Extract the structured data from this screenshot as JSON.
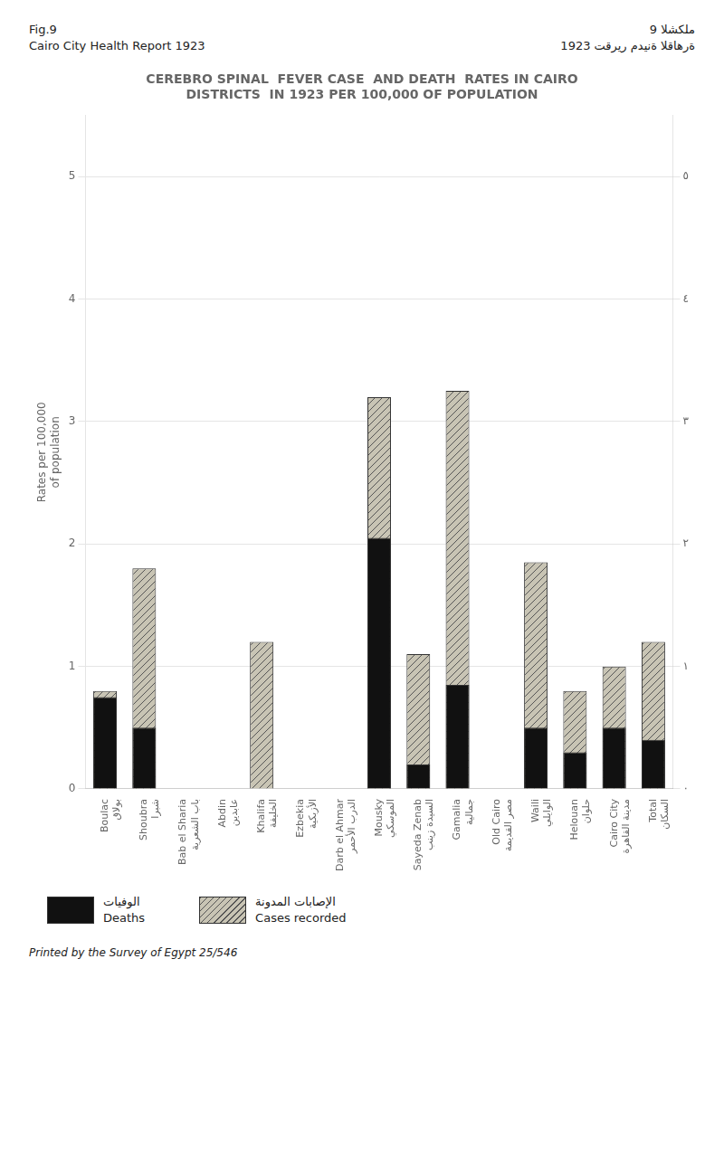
{
  "chart_data": {
    "type": "bar",
    "title": [
      "CEREBRO SPINAL  FEVER CASE  AND DEATH  RATES IN CAIRO",
      "DISTRICTS  IN 1923 PER 100,000 OF POPULATION"
    ],
    "ylabel": "Rates per 100,000\nof population",
    "categories": [
      [
        "Boulac",
        "بولاق"
      ],
      [
        "Shoubra",
        "شبرا"
      ],
      [
        "Bab el Sharia",
        "باب الشعرية"
      ],
      [
        "Abdin",
        "عابدين"
      ],
      [
        "Khalifa",
        "الخليفة"
      ],
      [
        "Ezbekia",
        "الأزبكية"
      ],
      [
        "Darb el Ahmar",
        "الدرب الأحمر"
      ],
      [
        "Mousky",
        "الموسكي"
      ],
      [
        "Sayeda Zenab",
        "السيدة زينب"
      ],
      [
        "Gamalia",
        "جمالية"
      ],
      [
        "Old Cairo",
        "مصر القديمة"
      ],
      [
        "Waili",
        "الوايلي"
      ],
      [
        "Helouan",
        "حلوان"
      ],
      [
        "Cairo City",
        "مدينة القاهرة"
      ],
      [
        "Total",
        "السكان"
      ]
    ],
    "series": [
      {
        "name": "Cases recorded",
        "color": "#c8c4b4",
        "values": [
          0.8,
          1.8,
          0,
          0,
          1.2,
          0,
          0,
          3.2,
          1.1,
          3.25,
          0,
          1.85,
          0.8,
          1.0,
          1.2
        ]
      },
      {
        "name": "Deaths",
        "color": "#111111",
        "values": [
          0.75,
          0.5,
          0,
          0,
          0,
          0,
          0,
          2.05,
          0.2,
          0.85,
          0,
          0.5,
          0.3,
          0.5,
          0.4
        ]
      }
    ],
    "ylim": [
      0,
      5.5
    ],
    "yticks": [
      0,
      1,
      2,
      3,
      4,
      5
    ],
    "y2lim": [
      0,
      5.5
    ],
    "y2ticks": [
      {
        "value": 0,
        "label": "٠"
      },
      {
        "value": 1,
        "label": "١"
      },
      {
        "value": 2,
        "label": "٢"
      },
      {
        "value": 3,
        "label": "٣"
      },
      {
        "value": 4,
        "label": "٤"
      },
      {
        "value": 5,
        "label": "٥"
      }
    ],
    "grid": true,
    "legend": "bottom",
    "annotations": [
      "Fig.9",
      "Cairo City Health Report 1923",
      "9 ملكشلا",
      "1923 ةرهاقلا ةنيدم ريرقت",
      "الوفيات",
      "الإصابات المدونة",
      "Printed by the Survey of Egypt  25/546"
    ]
  }
}
